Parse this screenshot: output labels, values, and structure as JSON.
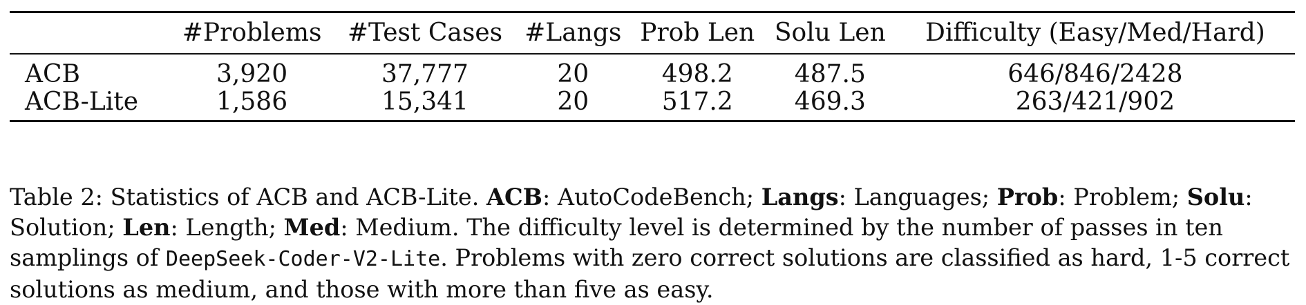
{
  "table": {
    "headers": [
      "",
      "#Problems",
      "#Test Cases",
      "#Langs",
      "Prob Len",
      "Solu Len",
      "Difficulty (Easy/Med/Hard)"
    ],
    "rows": [
      [
        "ACB",
        "3,920",
        "37,777",
        "20",
        "498.2",
        "487.5",
        "646/846/2428"
      ],
      [
        "ACB-Lite",
        "1,586",
        "15,341",
        "20",
        "517.2",
        "469.3",
        "263/421/902"
      ]
    ]
  },
  "caption": {
    "prefix": "Table 2: Statistics of ACB and ACB-Lite. ",
    "acb_term": "ACB",
    "acb_def": ": AutoCodeBench; ",
    "langs_term": "Langs",
    "langs_def": ": Languages; ",
    "prob_term": "Prob",
    "prob_def": ": Problem; ",
    "solu_term": "Solu",
    "solu_def": ": Solution; ",
    "len_term": "Len",
    "len_def": ": Length; ",
    "med_term": "Med",
    "med_def": ": Medium. The difficulty level is determined by the number of passes in ten samplings of ",
    "model_name": "DeepSeek-Coder-V2-Lite",
    "suffix": ". Problems with zero correct solutions are classified as hard, 1-5 correct solutions as medium, and those with more than five as easy."
  }
}
